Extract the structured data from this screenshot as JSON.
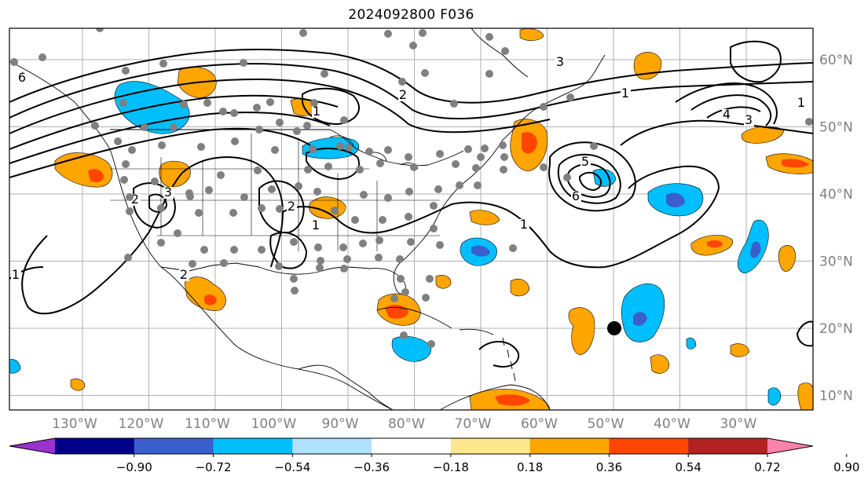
{
  "title": "2024092800 F036",
  "lon_labels": [
    "130°W",
    "120°W",
    "110°W",
    "100°W",
    "90°W",
    "80°W",
    "70°W",
    "60°W",
    "50°W",
    "40°W",
    "30°W"
  ],
  "lat_labels": [
    "60°N",
    "50°N",
    "40°N",
    "30°N",
    "20°N",
    "10°N"
  ],
  "colorbar": {
    "ticks": [
      "−0.90",
      "−0.72",
      "−0.54",
      "−0.36",
      "−0.18",
      "0.18",
      "0.36",
      "0.54",
      "0.72",
      "0.90"
    ],
    "colors": [
      "#9a32cd",
      "#00008b",
      "#3a5fcd",
      "#00bfff",
      "#b0e2ff",
      "#ffffff",
      "#ffe78b",
      "#ffa500",
      "#ff4500",
      "#b22222",
      "#ff82ab"
    ],
    "extend": "both"
  },
  "contour_labels": [
    "6",
    "1",
    "3",
    "2",
    "1",
    "1",
    "4",
    "3",
    "5",
    "6",
    "1",
    "2",
    "3",
    "2",
    "1",
    "2",
    "1"
  ],
  "colors": {
    "contour": "#000000",
    "station_dot": "#808080",
    "marker": "#000000",
    "grid": "#b0b0b0",
    "tick_label": "#808080"
  },
  "marker": {
    "name": "storm-center-marker",
    "lon": -50,
    "lat": 20
  }
}
